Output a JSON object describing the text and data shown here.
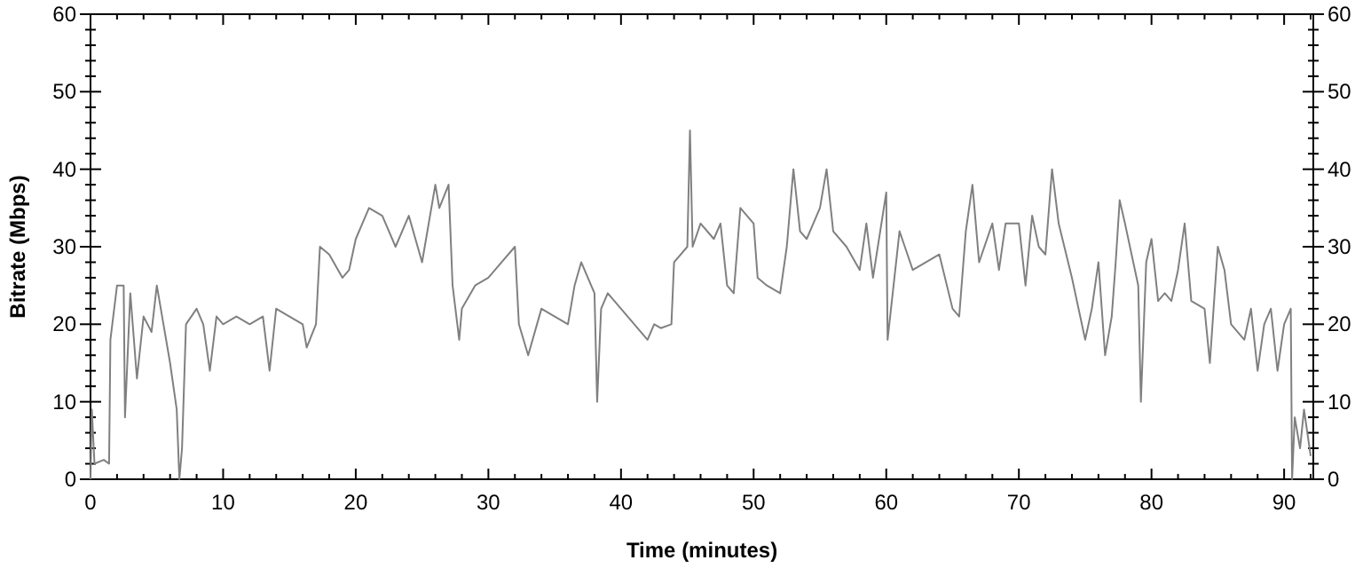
{
  "chart_data": {
    "type": "line",
    "xlabel": "Time (minutes)",
    "ylabel": "Bitrate (Mbps)",
    "x": [
      0,
      0.1,
      0.3,
      1,
      1.4,
      1.5,
      2,
      2.5,
      2.6,
      3,
      3.5,
      4,
      4.6,
      5,
      5.5,
      6,
      6.5,
      6.7,
      6.9,
      7.2,
      8,
      8.5,
      9,
      9.5,
      10,
      11,
      12,
      13,
      13.5,
      14,
      15,
      16,
      16.3,
      17,
      17.3,
      18,
      19,
      19.5,
      20,
      21,
      22,
      23,
      24,
      25,
      26,
      26.3,
      27,
      27.3,
      27.8,
      28,
      29,
      30,
      31,
      32,
      32.3,
      33,
      34,
      35,
      36,
      36.5,
      37,
      38,
      38.2,
      38.5,
      39,
      40,
      41,
      42,
      42.5,
      43,
      43.8,
      44,
      45,
      45.2,
      45.4,
      46,
      47,
      47.5,
      48,
      48.5,
      49,
      50,
      50.3,
      51,
      52,
      52.5,
      53,
      53.5,
      54,
      55,
      55.5,
      56,
      57,
      58,
      58.5,
      59,
      60,
      60.1,
      61,
      62,
      63,
      64,
      65,
      65.5,
      66,
      66.5,
      67,
      68,
      68.5,
      69,
      70,
      70.5,
      71,
      71.5,
      72,
      72.5,
      73,
      74,
      75,
      75.5,
      76,
      76.5,
      77,
      77.3,
      77.6,
      78,
      79,
      79.2,
      79.6,
      80,
      80.5,
      81,
      81.5,
      82,
      82.5,
      83,
      84,
      84.4,
      85,
      85.5,
      86,
      87,
      87.5,
      88,
      88.5,
      89,
      89.5,
      90,
      90.5,
      90.6,
      90.8,
      91.2,
      91.5,
      92
    ],
    "series": [
      {
        "color": "#808080",
        "values": [
          0,
          9,
          2,
          2.5,
          2,
          18,
          25,
          25,
          8,
          24,
          13,
          21,
          19,
          25,
          20,
          15,
          9,
          0,
          4,
          20,
          22,
          20,
          14,
          21,
          20,
          21,
          20,
          21,
          14,
          22,
          21,
          20,
          17,
          20,
          30,
          29,
          26,
          27,
          31,
          35,
          34,
          30,
          34,
          28,
          38,
          35,
          38,
          25,
          18,
          22,
          25,
          26,
          28,
          30,
          20,
          16,
          22,
          21,
          20,
          25,
          28,
          24,
          10,
          22,
          24,
          22,
          20,
          18,
          20,
          19.5,
          20,
          28,
          30,
          45,
          30,
          33,
          31,
          33,
          25,
          24,
          35,
          33,
          26,
          25,
          24,
          30,
          40,
          32,
          31,
          35,
          40,
          32,
          30,
          27,
          33,
          26,
          37,
          18,
          32,
          27,
          28,
          29,
          22,
          21,
          32,
          38,
          28,
          33,
          27,
          33,
          33,
          25,
          34,
          30,
          29,
          40,
          33,
          26,
          18,
          22,
          28,
          16,
          21,
          28,
          36,
          33,
          25,
          10,
          28,
          31,
          23,
          24,
          23,
          27,
          33,
          23,
          22,
          15,
          30,
          27,
          20,
          18,
          22,
          14,
          20,
          22,
          14,
          20,
          22,
          0,
          8,
          4,
          9,
          3
        ]
      }
    ],
    "xlim": [
      0,
      92.2
    ],
    "ylim": [
      0,
      60
    ],
    "y2lim": [
      0,
      60
    ],
    "xticks": [
      0,
      {
        "value": 2,
        "label": null
      },
      {
        "value": 4,
        "label": null
      },
      {
        "value": 6,
        "label": null
      },
      {
        "value": 8,
        "label": null
      },
      10,
      {
        "value": 12,
        "label": null
      },
      {
        "value": 14,
        "label": null
      },
      {
        "value": 16,
        "label": null
      },
      {
        "value": 18,
        "label": null
      },
      20,
      {
        "value": 22,
        "label": null
      },
      {
        "value": 24,
        "label": null
      },
      {
        "value": 26,
        "label": null
      },
      {
        "value": 28,
        "label": null
      },
      30,
      {
        "value": 32,
        "label": null
      },
      {
        "value": 34,
        "label": null
      },
      {
        "value": 36,
        "label": null
      },
      {
        "value": 38,
        "label": null
      },
      40,
      {
        "value": 42,
        "label": null
      },
      {
        "value": 44,
        "label": null
      },
      {
        "value": 46,
        "label": null
      },
      {
        "value": 48,
        "label": null
      },
      50,
      {
        "value": 52,
        "label": null
      },
      {
        "value": 54,
        "label": null
      },
      {
        "value": 56,
        "label": null
      },
      {
        "value": 58,
        "label": null
      },
      60,
      {
        "value": 62,
        "label": null
      },
      {
        "value": 64,
        "label": null
      },
      {
        "value": 66,
        "label": null
      },
      {
        "value": 68,
        "label": null
      },
      70,
      {
        "value": 72,
        "label": null
      },
      {
        "value": 74,
        "label": null
      },
      {
        "value": 76,
        "label": null
      },
      {
        "value": 78,
        "label": null
      },
      80,
      {
        "value": 82,
        "label": null
      },
      {
        "value": 84,
        "label": null
      },
      {
        "value": 86,
        "label": null
      },
      {
        "value": 88,
        "label": null
      },
      90,
      {
        "value": 92,
        "label": null
      }
    ],
    "yticks": [
      0,
      {
        "value": 2,
        "label": null
      },
      {
        "value": 4,
        "label": null
      },
      {
        "value": 6,
        "label": null
      },
      {
        "value": 8,
        "label": null
      },
      10,
      {
        "value": 12,
        "label": null
      },
      {
        "value": 14,
        "label": null
      },
      {
        "value": 16,
        "label": null
      },
      {
        "value": 18,
        "label": null
      },
      20,
      {
        "value": 22,
        "label": null
      },
      {
        "value": 24,
        "label": null
      },
      {
        "value": 26,
        "label": null
      },
      {
        "value": 28,
        "label": null
      },
      30,
      {
        "value": 32,
        "label": null
      },
      {
        "value": 34,
        "label": null
      },
      {
        "value": 36,
        "label": null
      },
      {
        "value": 38,
        "label": null
      },
      40,
      {
        "value": 42,
        "label": null
      },
      {
        "value": 44,
        "label": null
      },
      {
        "value": 46,
        "label": null
      },
      {
        "value": 48,
        "label": null
      },
      50,
      {
        "value": 52,
        "label": null
      },
      {
        "value": 54,
        "label": null
      },
      {
        "value": 56,
        "label": null
      },
      {
        "value": 58,
        "label": null
      },
      60
    ],
    "y2ticks": [
      0,
      {
        "value": 2,
        "label": null
      },
      {
        "value": 4,
        "label": null
      },
      {
        "value": 6,
        "label": null
      },
      {
        "value": 8,
        "label": null
      },
      10,
      {
        "value": 12,
        "label": null
      },
      {
        "value": 14,
        "label": null
      },
      {
        "value": 16,
        "label": null
      },
      {
        "value": 18,
        "label": null
      },
      20,
      {
        "value": 22,
        "label": null
      },
      {
        "value": 24,
        "label": null
      },
      {
        "value": 26,
        "label": null
      },
      {
        "value": 28,
        "label": null
      },
      30,
      {
        "value": 32,
        "label": null
      },
      {
        "value": 34,
        "label": null
      },
      {
        "value": 36,
        "label": null
      },
      {
        "value": 38,
        "label": null
      },
      40,
      {
        "value": 42,
        "label": null
      },
      {
        "value": 44,
        "label": null
      },
      {
        "value": 46,
        "label": null
      },
      {
        "value": 48,
        "label": null
      },
      50,
      {
        "value": 52,
        "label": null
      },
      {
        "value": 54,
        "label": null
      },
      {
        "value": 56,
        "label": null
      },
      {
        "value": 58,
        "label": null
      },
      60
    ],
    "grid": false,
    "marker": "none",
    "line_style": "solid"
  }
}
